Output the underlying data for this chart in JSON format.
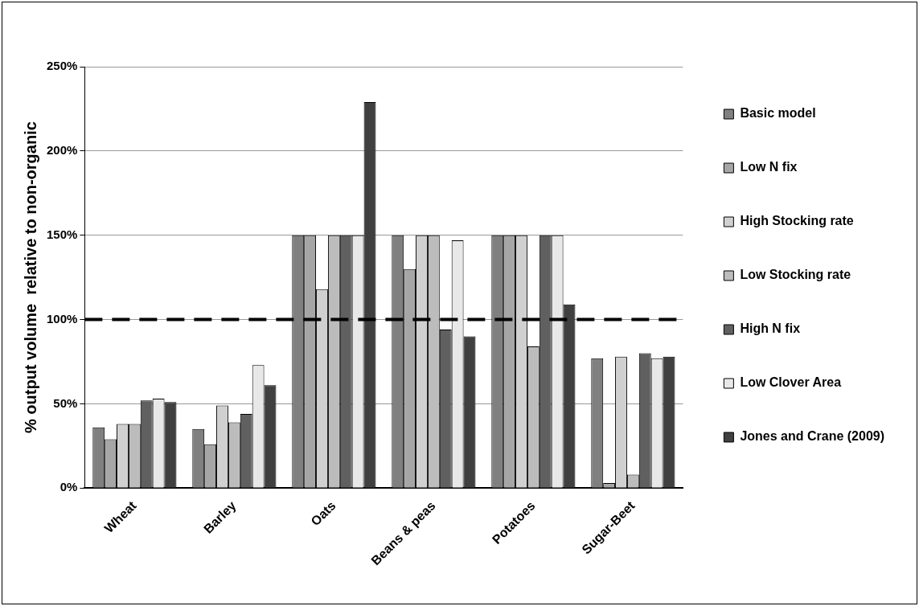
{
  "chart_data": {
    "type": "bar",
    "ylabel": "% output volume  relative to non-organic",
    "categories": [
      "Wheat",
      "Barley",
      "Oats",
      "Beans & peas",
      "Potatoes",
      "Sugar-Beet"
    ],
    "series": [
      {
        "name": "Basic model",
        "color": "#808080",
        "values": [
          36,
          35,
          150,
          150,
          150,
          77
        ]
      },
      {
        "name": "Low N fix",
        "color": "#a6a6a6",
        "values": [
          29,
          26,
          150,
          130,
          150,
          3
        ]
      },
      {
        "name": "High Stocking rate",
        "color": "#d0d0d0",
        "values": [
          38,
          49,
          118,
          150,
          150,
          78
        ]
      },
      {
        "name": "Low Stocking rate",
        "color": "#bcbcbc",
        "values": [
          38,
          39,
          150,
          150,
          84,
          8
        ]
      },
      {
        "name": "High N fix",
        "color": "#606060",
        "values": [
          52,
          44,
          150,
          94,
          150,
          80
        ]
      },
      {
        "name": "Low Clover Area",
        "color": "#e8e8e8",
        "values": [
          53,
          73,
          150,
          147,
          150,
          77
        ]
      },
      {
        "name": "Jones and Crane (2009)",
        "color": "#404040",
        "values": [
          51,
          61,
          229,
          90,
          109,
          78
        ]
      }
    ],
    "ylim": [
      0,
      250
    ],
    "yticks": [
      {
        "value": 0,
        "label": "0%"
      },
      {
        "value": 50,
        "label": "50%"
      },
      {
        "value": 100,
        "label": "100%"
      },
      {
        "value": 150,
        "label": "150%"
      },
      {
        "value": 200,
        "label": "200%"
      },
      {
        "value": 250,
        "label": "250%"
      }
    ],
    "ref_lines": [
      {
        "axis": "y",
        "value": 100,
        "color": "#000000",
        "line_style": "dashed"
      }
    ],
    "grid": "y",
    "legend": "right"
  }
}
